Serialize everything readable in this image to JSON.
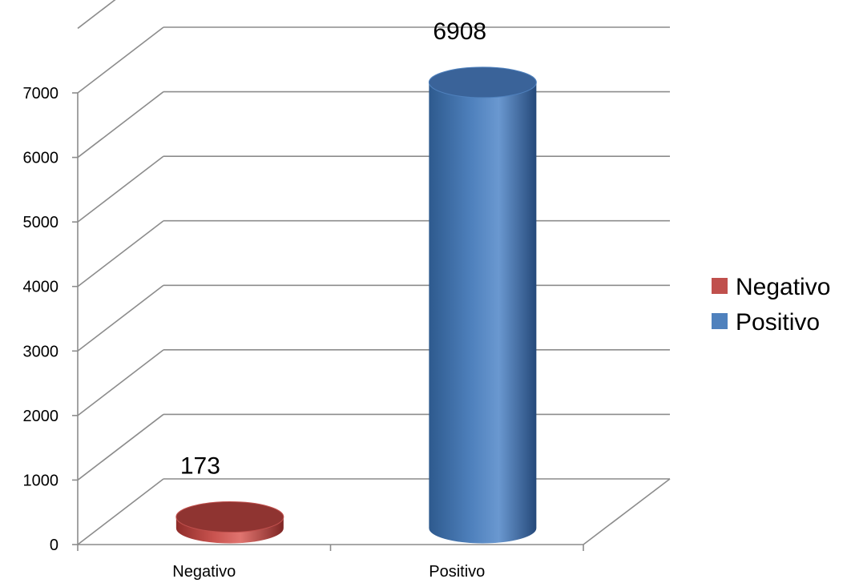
{
  "chart_data": {
    "type": "bar",
    "categories": [
      "Negativo",
      "Positivo"
    ],
    "values": [
      173,
      6908
    ],
    "data_labels": [
      "173",
      "6908"
    ],
    "ylim": [
      0,
      7000
    ],
    "y_ticks": [
      0,
      1000,
      2000,
      3000,
      4000,
      5000,
      6000,
      7000
    ],
    "grid": true,
    "legend": {
      "position": "right",
      "entries": [
        {
          "label": "Negativo",
          "color": "#c0504d"
        },
        {
          "label": "Positivo",
          "color": "#4f81bd"
        }
      ]
    },
    "style": "3d-cylinder"
  }
}
